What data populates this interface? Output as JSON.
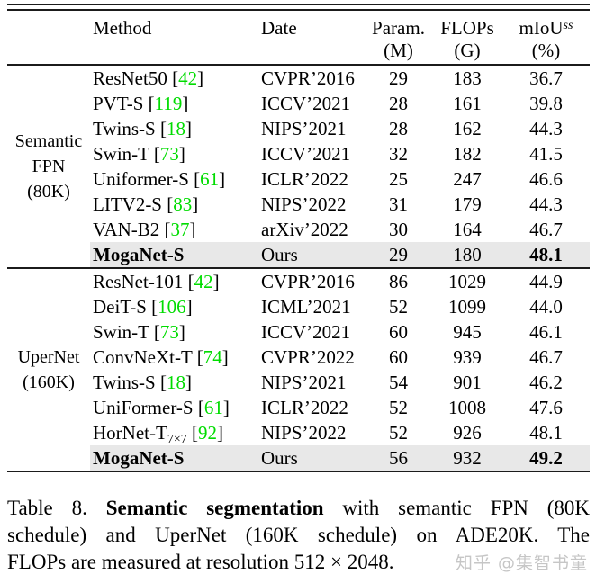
{
  "colors": {
    "citation_green": "#00dc00",
    "highlight_row": "#e8e8e8",
    "rule": "#1b1b1b",
    "watermark_gray": "#c6c6c6"
  },
  "table": {
    "header": {
      "method": "Method",
      "date": "Date",
      "param1": "Param.",
      "param2": "(M)",
      "flops1": "FLOPs",
      "flops2": "(G)",
      "miou1": "mIoU",
      "miou_sup": "ss",
      "miou2": "(%)"
    },
    "groups": [
      {
        "label_lines": [
          "Semantic",
          "FPN",
          "(80K)"
        ],
        "rows": [
          {
            "method": "ResNet50",
            "cite": "42",
            "date": "CVPR’2016",
            "params": "29",
            "flops": "183",
            "miou": "36.7"
          },
          {
            "method": "PVT-S",
            "cite": "119",
            "date": "ICCV’2021",
            "params": "28",
            "flops": "161",
            "miou": "39.8"
          },
          {
            "method": "Twins-S",
            "cite": "18",
            "date": "NIPS’2021",
            "params": "28",
            "flops": "162",
            "miou": "44.3"
          },
          {
            "method": "Swin-T",
            "cite": "73",
            "date": "ICCV’2021",
            "params": "32",
            "flops": "182",
            "miou": "41.5"
          },
          {
            "method": "Uniformer-S",
            "cite": "61",
            "date": "ICLR’2022",
            "params": "25",
            "flops": "247",
            "miou": "46.6"
          },
          {
            "method": "LITV2-S",
            "cite": "83",
            "date": "NIPS’2022",
            "params": "31",
            "flops": "179",
            "miou": "44.3"
          },
          {
            "method": "VAN-B2",
            "cite": "37",
            "date": "arXiv’2022",
            "params": "30",
            "flops": "164",
            "miou": "46.7"
          },
          {
            "method": "MogaNet-S",
            "cite": null,
            "date": "Ours",
            "params": "29",
            "flops": "180",
            "miou": "48.1",
            "bold": true,
            "highlight": true
          }
        ]
      },
      {
        "label_lines": [
          "UperNet",
          "(160K)"
        ],
        "rows": [
          {
            "method": "ResNet-101",
            "cite": "42",
            "date": "CVPR’2016",
            "params": "86",
            "flops": "1029",
            "miou": "44.9"
          },
          {
            "method": "DeiT-S",
            "cite": "106",
            "date": "ICML’2021",
            "params": "52",
            "flops": "1099",
            "miou": "44.0"
          },
          {
            "method": "Swin-T",
            "cite": "73",
            "date": "ICCV’2021",
            "params": "60",
            "flops": "945",
            "miou": "46.1"
          },
          {
            "method": "ConvNeXt-T",
            "cite": "74",
            "date": "CVPR’2022",
            "params": "60",
            "flops": "939",
            "miou": "46.7"
          },
          {
            "method": "Twins-S",
            "cite": "18",
            "date": "NIPS’2021",
            "params": "54",
            "flops": "901",
            "miou": "46.2"
          },
          {
            "method": "UniFormer-S",
            "cite": "61",
            "date": "ICLR’2022",
            "params": "52",
            "flops": "1008",
            "miou": "47.6"
          },
          {
            "method": "HorNet-T",
            "method_sub": "7×7",
            "cite": "92",
            "date": "NIPS’2022",
            "params": "52",
            "flops": "926",
            "miou": "48.1"
          },
          {
            "method": "MogaNet-S",
            "cite": null,
            "date": "Ours",
            "params": "56",
            "flops": "932",
            "miou": "49.2",
            "bold": true,
            "highlight": true
          }
        ]
      }
    ]
  },
  "caption": {
    "label": "Table 8.",
    "bold_phrase": "Semantic segmentation",
    "line1_rest": "with semantic FPN (80K",
    "line2": "schedule) and UperNet (160K schedule) on ADE20K. The",
    "line3": "FLOPs are measured at resolution 512 × 2048."
  },
  "watermark": "知乎 @集智书童"
}
